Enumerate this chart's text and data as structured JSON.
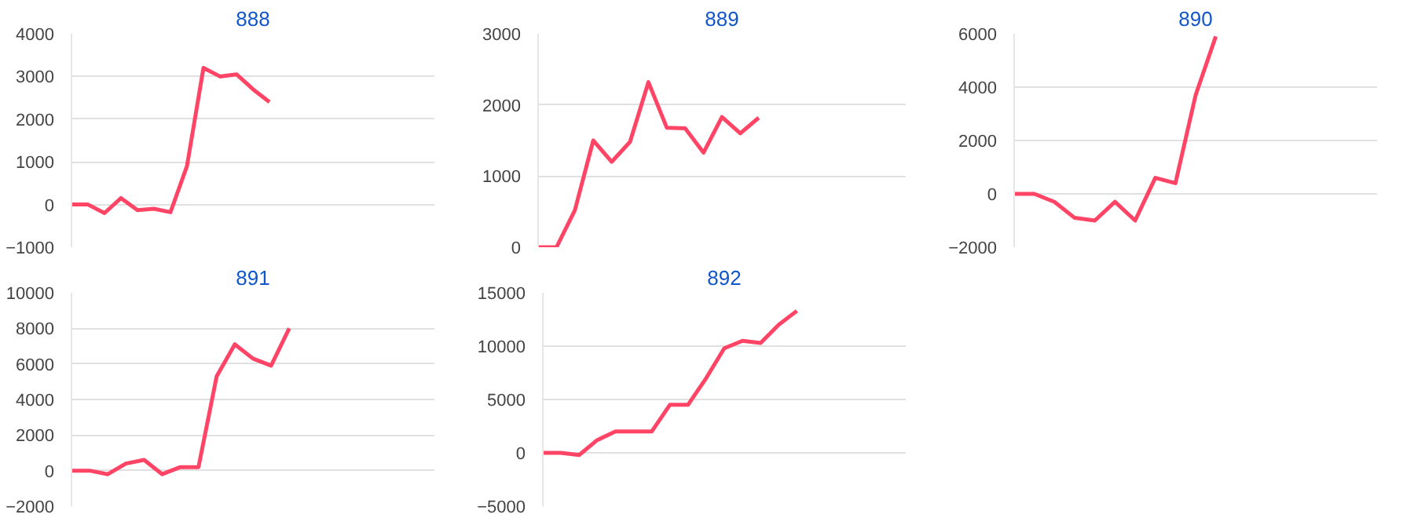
{
  "chart_data": [
    {
      "type": "line",
      "title": "888",
      "categories": [
        null,
        null,
        null,
        null,
        null,
        null,
        null,
        null,
        null,
        null,
        null,
        null,
        null,
        null,
        null,
        null,
        null,
        null,
        null,
        null,
        null,
        null,
        null
      ],
      "values": [
        0,
        0,
        -200,
        150,
        -130,
        -100,
        -180,
        900,
        3200,
        3000,
        3050,
        2700,
        2400,
        null,
        null,
        null,
        null,
        null,
        null,
        null,
        null,
        null,
        null
      ],
      "color": "#ff4466",
      "ylim": [
        -1000,
        4000
      ],
      "yticks": [
        -1000,
        0,
        1000,
        2000,
        3000,
        4000
      ],
      "grid": "y",
      "tick_labels": "y"
    },
    {
      "type": "line",
      "title": "889",
      "categories": [
        null,
        null,
        null,
        null,
        null,
        null,
        null,
        null,
        null,
        null,
        null,
        null,
        null,
        null,
        null,
        null,
        null,
        null,
        null,
        null,
        null
      ],
      "values": [
        0,
        0,
        520,
        1500,
        1200,
        1480,
        2320,
        1680,
        1670,
        1330,
        1830,
        1600,
        1820,
        null,
        null,
        null,
        null,
        null,
        null,
        null,
        null
      ],
      "color": "#ff4466",
      "ylim": [
        0,
        3000
      ],
      "yticks": [
        0,
        1000,
        2000,
        3000
      ],
      "grid": "y",
      "tick_labels": "y"
    },
    {
      "type": "line",
      "title": "890",
      "categories": [
        null,
        null,
        null,
        null,
        null,
        null,
        null,
        null,
        null,
        null,
        null,
        null,
        null,
        null,
        null,
        null,
        null,
        null,
        null
      ],
      "values": [
        0,
        0,
        -300,
        -900,
        -1000,
        -300,
        -1000,
        600,
        400,
        3700,
        5900,
        null,
        null,
        null,
        null,
        null,
        null,
        null,
        null
      ],
      "color": "#ff4466",
      "ylim": [
        -2000,
        6000
      ],
      "yticks": [
        -2000,
        0,
        2000,
        4000,
        6000
      ],
      "grid": "y",
      "tick_labels": "y"
    },
    {
      "type": "line",
      "title": "891",
      "categories": [
        null,
        null,
        null,
        null,
        null,
        null,
        null,
        null,
        null,
        null,
        null,
        null,
        null,
        null,
        null,
        null,
        null,
        null,
        null,
        null,
        null
      ],
      "values": [
        0,
        0,
        -200,
        400,
        600,
        -200,
        200,
        200,
        5300,
        7100,
        6300,
        5900,
        8000,
        null,
        null,
        null,
        null,
        null,
        null,
        null,
        null
      ],
      "color": "#ff4466",
      "ylim": [
        -2000,
        10000
      ],
      "yticks": [
        -2000,
        0,
        2000,
        4000,
        6000,
        8000,
        10000
      ],
      "grid": "y",
      "tick_labels": "y"
    },
    {
      "type": "line",
      "title": "892",
      "categories": [
        null,
        null,
        null,
        null,
        null,
        null,
        null,
        null,
        null,
        null,
        null,
        null,
        null,
        null,
        null,
        null,
        null,
        null,
        null,
        null,
        null
      ],
      "values": [
        0,
        0,
        -200,
        1200,
        2000,
        2000,
        2000,
        4500,
        4500,
        7000,
        9800,
        10500,
        10300,
        12000,
        13300,
        null,
        null,
        null,
        null,
        null,
        null
      ],
      "color": "#ff4466",
      "ylim": [
        -5000,
        15000
      ],
      "yticks": [
        -5000,
        0,
        5000,
        10000,
        15000
      ],
      "grid": "y",
      "tick_labels": "y"
    }
  ]
}
